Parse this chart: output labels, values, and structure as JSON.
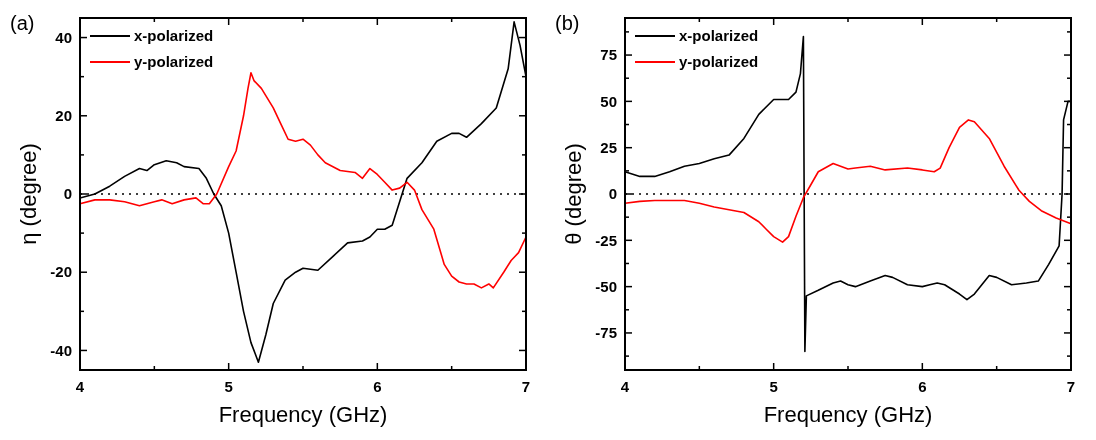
{
  "chart_data": [
    {
      "type": "line",
      "annotations": [
        "(a)"
      ],
      "xlabel": "Frequency (GHz)",
      "ylabel": "η (degree)",
      "xlim": [
        4,
        7
      ],
      "ylim": [
        -45,
        45
      ],
      "xticks": [
        4,
        {
          "value": 4.5,
          "label": null
        },
        5,
        {
          "value": 5.5,
          "label": null
        },
        6,
        {
          "value": 6.5,
          "label": null
        },
        7
      ],
      "yticks": [
        -40,
        {
          "value": -30,
          "label": null
        },
        -20,
        {
          "value": -10,
          "label": null
        },
        0,
        {
          "value": 10,
          "label": null
        },
        20,
        {
          "value": 30,
          "label": null
        },
        40
      ],
      "legend": "top left",
      "ref_lines": [
        {
          "axis": "y",
          "value": 0,
          "color": "#000000",
          "line_style": "dotted"
        }
      ],
      "series": [
        {
          "name": "x-polarized",
          "color": "#000000",
          "x": [
            4.0,
            4.1,
            4.2,
            4.3,
            4.4,
            4.45,
            4.5,
            4.58,
            4.65,
            4.7,
            4.8,
            4.85,
            4.9,
            4.95,
            5.0,
            5.05,
            5.1,
            5.15,
            5.2,
            5.25,
            5.3,
            5.38,
            5.45,
            5.5,
            5.6,
            5.7,
            5.8,
            5.9,
            5.95,
            6.0,
            6.05,
            6.1,
            6.15,
            6.2,
            6.3,
            6.4,
            6.5,
            6.55,
            6.6,
            6.7,
            6.8,
            6.88,
            6.92,
            6.96,
            7.0
          ],
          "values": [
            -1,
            0,
            2,
            4.5,
            6.5,
            6,
            7.5,
            8.5,
            8,
            7,
            6.5,
            4,
            0,
            -3,
            -10,
            -20,
            -30,
            -38,
            -43,
            -36,
            -28,
            -22,
            -20,
            -19,
            -19.5,
            -16,
            -12.5,
            -12,
            -11,
            -9,
            -9,
            -8,
            -2,
            4,
            8,
            13.5,
            15.5,
            15.5,
            14.5,
            18,
            22,
            32,
            44,
            38,
            30
          ]
        },
        {
          "name": "y-polarized",
          "color": "#ff0000",
          "x": [
            4.0,
            4.1,
            4.2,
            4.3,
            4.4,
            4.5,
            4.55,
            4.62,
            4.7,
            4.78,
            4.83,
            4.87,
            4.92,
            5.0,
            5.05,
            5.1,
            5.13,
            5.15,
            5.17,
            5.22,
            5.3,
            5.35,
            5.4,
            5.45,
            5.5,
            5.55,
            5.6,
            5.65,
            5.75,
            5.85,
            5.9,
            5.95,
            6.0,
            6.05,
            6.1,
            6.15,
            6.2,
            6.25,
            6.3,
            6.38,
            6.45,
            6.5,
            6.55,
            6.6,
            6.65,
            6.7,
            6.75,
            6.78,
            6.85,
            6.9,
            6.95,
            7.0
          ],
          "values": [
            -2.5,
            -1.5,
            -1.5,
            -2,
            -3,
            -2,
            -1.5,
            -2.5,
            -1.5,
            -1,
            -2.5,
            -2.5,
            0,
            7,
            11,
            20,
            27,
            31,
            29,
            27,
            22,
            18,
            14,
            13.5,
            14,
            12.5,
            10,
            8,
            6,
            5.5,
            4,
            6.5,
            5,
            3,
            1,
            1.5,
            3,
            1,
            -4,
            -9,
            -18,
            -21,
            -22.5,
            -23,
            -23,
            -24,
            -23,
            -24,
            -20,
            -17,
            -15,
            -11
          ]
        }
      ]
    },
    {
      "type": "line",
      "annotations": [
        "(b)"
      ],
      "xlabel": "Frequency (GHz)",
      "ylabel": "θ (degree)",
      "xlim": [
        4,
        7
      ],
      "ylim": [
        -95,
        95
      ],
      "xticks": [
        4,
        {
          "value": 4.5,
          "label": null
        },
        5,
        {
          "value": 5.5,
          "label": null
        },
        6,
        {
          "value": 6.5,
          "label": null
        },
        7
      ],
      "yticks": [
        {
          "value": -87.5,
          "label": null
        },
        -75,
        {
          "value": -62.5,
          "label": null
        },
        -50,
        {
          "value": -37.5,
          "label": null
        },
        -25,
        {
          "value": -12.5,
          "label": null
        },
        0,
        {
          "value": 12.5,
          "label": null
        },
        25,
        {
          "value": 37.5,
          "label": null
        },
        50,
        {
          "value": 62.5,
          "label": null
        },
        75,
        {
          "value": 87.5,
          "label": null
        }
      ],
      "legend": "top left",
      "ref_lines": [
        {
          "axis": "y",
          "value": 0,
          "color": "#000000",
          "line_style": "dotted"
        }
      ],
      "series": [
        {
          "name": "x-polarized",
          "color": "#000000",
          "x": [
            4.0,
            4.1,
            4.2,
            4.3,
            4.4,
            4.5,
            4.6,
            4.7,
            4.8,
            4.9,
            5.0,
            5.1,
            5.15,
            5.18,
            5.2,
            5.21,
            5.22,
            5.3,
            5.4,
            5.45,
            5.5,
            5.55,
            5.65,
            5.75,
            5.8,
            5.9,
            6.0,
            6.05,
            6.1,
            6.15,
            6.25,
            6.3,
            6.35,
            6.4,
            6.45,
            6.5,
            6.6,
            6.7,
            6.78,
            6.85,
            6.92,
            6.94,
            6.95,
            6.98,
            7.0
          ],
          "values": [
            12,
            9.5,
            9.5,
            12,
            15,
            16.5,
            19,
            21,
            30,
            43,
            51,
            51,
            55,
            65,
            85,
            -85,
            -55,
            -52,
            -48,
            -47,
            -49,
            -50,
            -47,
            -44,
            -45,
            -49,
            -50,
            -49,
            -48,
            -49,
            -54,
            -57,
            -54,
            -49,
            -44,
            -45,
            -49,
            -48,
            -47,
            -38,
            -28,
            0,
            40,
            50,
            50
          ]
        },
        {
          "name": "y-polarized",
          "color": "#ff0000",
          "x": [
            4.0,
            4.1,
            4.2,
            4.3,
            4.4,
            4.5,
            4.6,
            4.7,
            4.8,
            4.9,
            4.95,
            5.0,
            5.06,
            5.1,
            5.15,
            5.2,
            5.25,
            5.3,
            5.4,
            5.45,
            5.5,
            5.55,
            5.65,
            5.75,
            5.9,
            6.0,
            6.08,
            6.12,
            6.18,
            6.25,
            6.31,
            6.35,
            6.45,
            6.55,
            6.65,
            6.72,
            6.8,
            6.9,
            7.0
          ],
          "values": [
            -5,
            -4,
            -3.5,
            -3.5,
            -3.5,
            -5,
            -7,
            -8.5,
            -10,
            -15,
            -19,
            -23,
            -26,
            -23,
            -12,
            -2,
            5,
            12,
            16.5,
            15,
            13.5,
            14,
            15,
            13,
            14,
            13,
            12,
            14,
            25,
            36,
            40,
            39,
            30,
            15,
            2,
            -4,
            -9,
            -13,
            -16
          ]
        }
      ]
    }
  ]
}
